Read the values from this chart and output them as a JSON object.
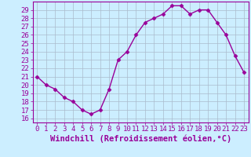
{
  "x": [
    0,
    1,
    2,
    3,
    4,
    5,
    6,
    7,
    8,
    9,
    10,
    11,
    12,
    13,
    14,
    15,
    16,
    17,
    18,
    19,
    20,
    21,
    22,
    23
  ],
  "y": [
    21,
    20,
    19.5,
    18.5,
    18,
    17,
    16.5,
    17,
    19.5,
    23,
    24,
    26,
    27.5,
    28,
    28.5,
    29.5,
    29.5,
    28.5,
    29,
    29,
    27.5,
    26,
    23.5,
    21.5
  ],
  "line_color": "#990099",
  "marker": "D",
  "markersize": 2.5,
  "linewidth": 1,
  "bg_color": "#cceeff",
  "grid_color": "#aabbcc",
  "xlabel": "Windchill (Refroidissement éolien,°C)",
  "xlabel_color": "#990099",
  "ylabel_ticks": [
    16,
    17,
    18,
    19,
    20,
    21,
    22,
    23,
    24,
    25,
    26,
    27,
    28,
    29
  ],
  "ylim": [
    15.5,
    30.0
  ],
  "xlim": [
    -0.5,
    23.5
  ],
  "tick_color": "#990099",
  "tick_fontsize": 6.5,
  "xlabel_fontsize": 7.5,
  "spine_color": "#990099"
}
